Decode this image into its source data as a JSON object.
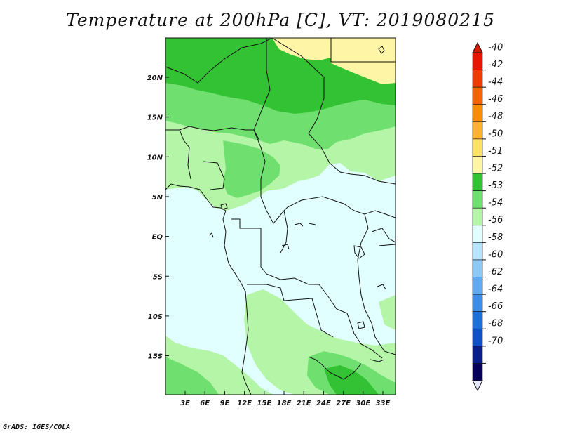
{
  "title": "Temperature at 200hPa [C], VT: 2019080215",
  "credit": "GrADS: IGES/COLA",
  "map": {
    "lat_labels": [
      "20N",
      "15N",
      "10N",
      "5N",
      "EQ",
      "5S",
      "10S",
      "15S"
    ],
    "lon_labels": [
      "3E",
      "6E",
      "9E",
      "12E",
      "15E",
      "18E",
      "21E",
      "24E",
      "27E",
      "30E",
      "33E"
    ]
  },
  "colorbar": {
    "labels": [
      "-40",
      "-42",
      "-44",
      "-46",
      "-48",
      "-50",
      "-51",
      "-52",
      "-53",
      "-54",
      "-56",
      "-58",
      "-60",
      "-62",
      "-64",
      "-66",
      "-68",
      "-70"
    ],
    "colors": [
      "#e81400",
      "#f03c00",
      "#f56400",
      "#fa8c00",
      "#fdb22e",
      "#fde165",
      "#fff5a6",
      "#33c233",
      "#6fe06f",
      "#b5f5a8",
      "#e2ffff",
      "#b6e4ff",
      "#8ec8f5",
      "#62aaf0",
      "#3c8ee6",
      "#1e6fd9",
      "#0f50c8",
      "#0a1e8a",
      "#07005a"
    ],
    "top_color": "#d41a00",
    "bottom_color": "#e6e6fa"
  },
  "colors": {
    "ocean": "#e2ffff",
    "light_green": "#b5f5a8",
    "mid_green": "#6fe06f",
    "dark_green": "#33c233",
    "pale_yellow": "#fff5a6",
    "borders": "#111111"
  }
}
